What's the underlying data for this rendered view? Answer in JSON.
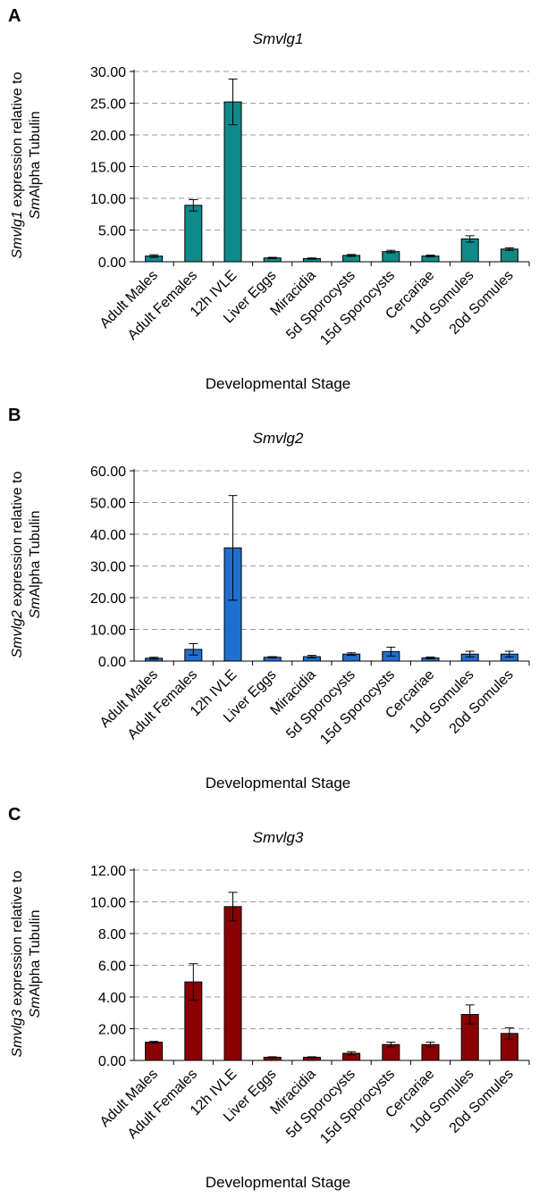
{
  "chart_data": [
    {
      "type": "bar",
      "panel_label": "A",
      "title": "Smvlg1",
      "ylabel_parts": [
        {
          "text": "Smvlg1",
          "italic": true
        },
        {
          "text": " expression relative to ",
          "italic": false
        },
        {
          "text": "Sm",
          "italic": true
        },
        {
          "text": "Alpha Tubulin",
          "italic": false
        }
      ],
      "xlabel": "Developmental Stage",
      "categories": [
        "Adult Males",
        "Adult Females",
        "12h IVLE",
        "Liver Eggs",
        "Miracidia",
        "5d Sporocysts",
        "15d Sporocysts",
        "Cercariae",
        "10d Somules",
        "20d Somules"
      ],
      "values": [
        0.9,
        8.9,
        25.2,
        0.6,
        0.5,
        1.0,
        1.6,
        0.9,
        3.6,
        2.0
      ],
      "errors": [
        0.2,
        0.9,
        3.6,
        0.1,
        0.1,
        0.15,
        0.2,
        0.15,
        0.5,
        0.2
      ],
      "ylim": [
        0,
        30
      ],
      "yticks": [
        "0.00",
        "5.00",
        "10.00",
        "15.00",
        "20.00",
        "25.00",
        "30.00"
      ],
      "bar_color": "#0e8a8a",
      "grid": true
    },
    {
      "type": "bar",
      "panel_label": "B",
      "title": "Smvlg2",
      "ylabel_parts": [
        {
          "text": "Smvlg2",
          "italic": true
        },
        {
          "text": " expression relative to ",
          "italic": false
        },
        {
          "text": "Sm",
          "italic": true
        },
        {
          "text": "Alpha Tubulin",
          "italic": false
        }
      ],
      "xlabel": "Developmental Stage",
      "categories": [
        "Adult Males",
        "Adult Females",
        "12h IVLE",
        "Liver Eggs",
        "Miracidia",
        "5d Sporocysts",
        "15d Sporocysts",
        "Cercariae",
        "10d Somules",
        "20d Somules"
      ],
      "values": [
        0.9,
        3.7,
        35.7,
        1.2,
        1.4,
        2.2,
        3.0,
        1.0,
        2.2,
        2.2
      ],
      "errors": [
        0.3,
        1.8,
        16.5,
        0.2,
        0.4,
        0.4,
        1.4,
        0.3,
        0.9,
        0.9
      ],
      "ylim": [
        0,
        60
      ],
      "yticks": [
        "0.00",
        "10.00",
        "20.00",
        "30.00",
        "40.00",
        "50.00",
        "60.00"
      ],
      "bar_color": "#1f6fd1",
      "grid": true
    },
    {
      "type": "bar",
      "panel_label": "C",
      "title": "Smvlg3",
      "ylabel_parts": [
        {
          "text": "Smvlg3",
          "italic": true
        },
        {
          "text": " expression relative to ",
          "italic": false
        },
        {
          "text": "Sm",
          "italic": true
        },
        {
          "text": "Alpha Tubulin",
          "italic": false
        }
      ],
      "xlabel": "Developmental Stage",
      "categories": [
        "Adult Males",
        "Adult Females",
        "12h IVLE",
        "Liver Eggs",
        "Miracidia",
        "5d Sporocysts",
        "15d Sporocysts",
        "Cercariae",
        "10d Somules",
        "20d Somules"
      ],
      "values": [
        1.15,
        4.95,
        9.7,
        0.2,
        0.2,
        0.45,
        1.0,
        1.0,
        2.9,
        1.7
      ],
      "errors": [
        0.05,
        1.15,
        0.9,
        0.03,
        0.03,
        0.1,
        0.15,
        0.15,
        0.6,
        0.35
      ],
      "ylim": [
        0,
        12
      ],
      "yticks": [
        "0.00",
        "2.00",
        "4.00",
        "6.00",
        "8.00",
        "10.00",
        "12.00"
      ],
      "bar_color": "#8b0000",
      "grid": true
    }
  ]
}
